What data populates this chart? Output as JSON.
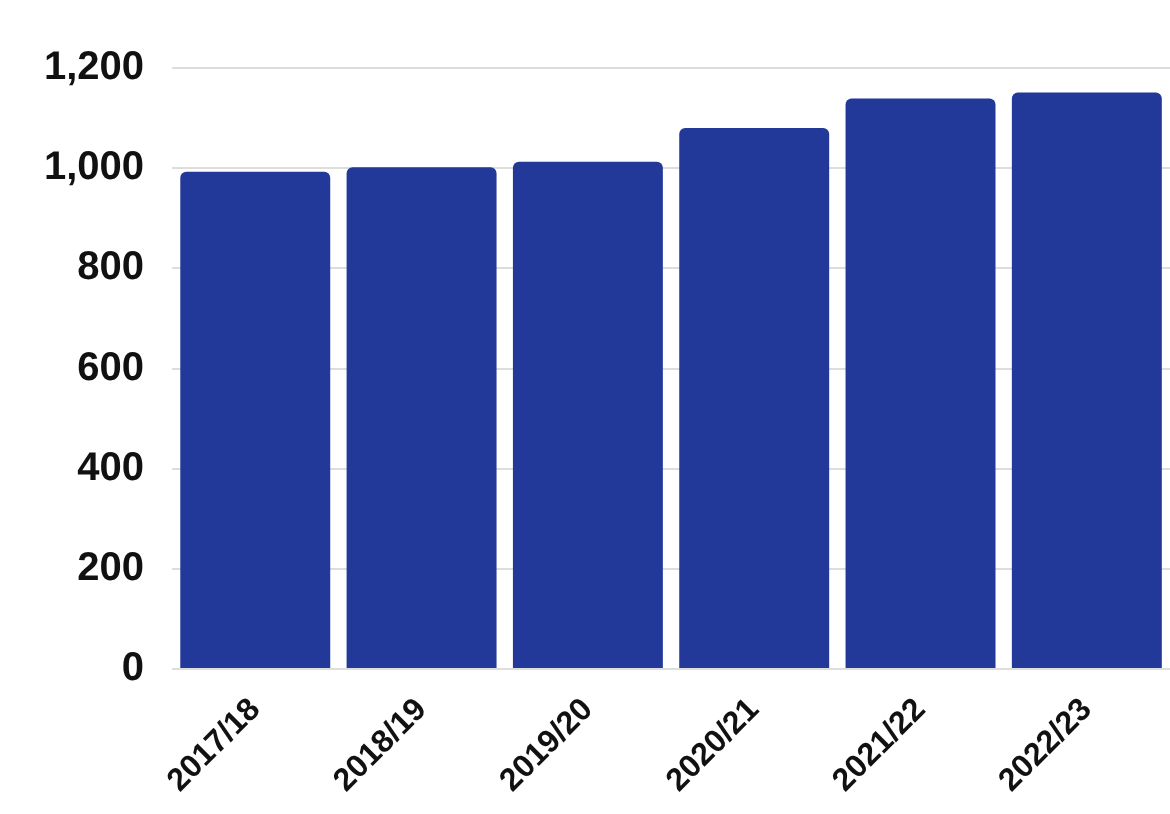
{
  "chart_data": {
    "type": "bar",
    "categories": [
      "2017/18",
      "2018/19",
      "2019/20",
      "2020/21",
      "2021/22",
      "2022/23"
    ],
    "values": [
      993,
      1002,
      1013,
      1080,
      1139,
      1151
    ],
    "color": "#22399a",
    "ylim": [
      0,
      1200
    ],
    "yticks": [
      0,
      200,
      400,
      600,
      800,
      {
        "value": 1000,
        "label": "1,000"
      },
      {
        "value": 1200,
        "label": "1,200"
      }
    ],
    "grid": "y",
    "legend": false
  }
}
